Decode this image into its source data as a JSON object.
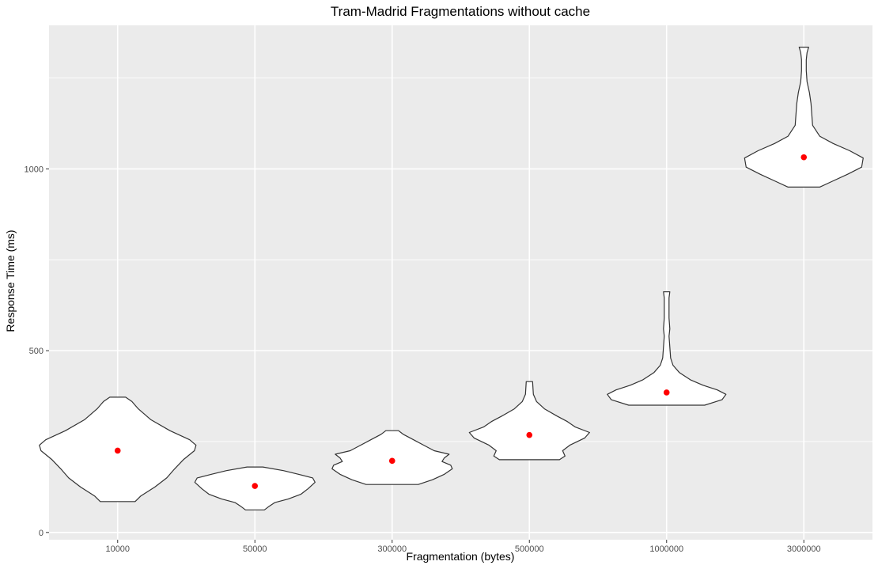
{
  "chart_data": {
    "type": "violin",
    "title": "Tram-Madrid Fragmentations without cache",
    "xlabel": "Fragmentation (bytes)",
    "ylabel": "Response Time (ms)",
    "ylim": [
      -20,
      1395
    ],
    "yticks": [
      0,
      500,
      1000
    ],
    "y_minor_gridlines": [
      250,
      750,
      1250
    ],
    "grid": true,
    "legend": "none",
    "colors": {
      "panel_background": "#ebebeb",
      "gridline": "#ffffff",
      "violin_fill": "#ffffff",
      "violin_outline": "#333333",
      "mean_point": "#ff0000"
    },
    "categories": [
      "10000",
      "50000",
      "300000",
      "500000",
      "1000000",
      "3000000"
    ],
    "series": [
      {
        "category": "10000",
        "mean": 225,
        "min": 85,
        "max": 372,
        "density": [
          [
            85,
            22
          ],
          [
            100,
            29
          ],
          [
            125,
            47
          ],
          [
            150,
            62
          ],
          [
            175,
            72
          ],
          [
            200,
            83
          ],
          [
            225,
            97
          ],
          [
            240,
            99
          ],
          [
            255,
            91
          ],
          [
            280,
            66
          ],
          [
            310,
            42
          ],
          [
            340,
            26
          ],
          [
            360,
            18
          ],
          [
            372,
            10
          ]
        ]
      },
      {
        "category": "50000",
        "mean": 128,
        "min": 62,
        "max": 180,
        "density": [
          [
            62,
            12
          ],
          [
            72,
            18
          ],
          [
            82,
            25
          ],
          [
            92,
            42
          ],
          [
            105,
            58
          ],
          [
            120,
            67
          ],
          [
            138,
            76
          ],
          [
            150,
            73
          ],
          [
            160,
            55
          ],
          [
            170,
            36
          ],
          [
            180,
            10
          ]
        ]
      },
      {
        "category": "300000",
        "mean": 197,
        "min": 132,
        "max": 280,
        "density": [
          [
            132,
            33
          ],
          [
            145,
            51
          ],
          [
            160,
            66
          ],
          [
            175,
            76
          ],
          [
            185,
            74
          ],
          [
            195,
            63
          ],
          [
            205,
            66
          ],
          [
            215,
            72
          ],
          [
            225,
            53
          ],
          [
            240,
            40
          ],
          [
            255,
            27
          ],
          [
            270,
            14
          ],
          [
            280,
            8
          ]
        ]
      },
      {
        "category": "500000",
        "mean": 268,
        "min": 200,
        "max": 415,
        "density": [
          [
            200,
            38
          ],
          [
            210,
            45
          ],
          [
            225,
            42
          ],
          [
            240,
            51
          ],
          [
            260,
            70
          ],
          [
            275,
            76
          ],
          [
            290,
            58
          ],
          [
            305,
            48
          ],
          [
            320,
            35
          ],
          [
            340,
            19
          ],
          [
            360,
            9
          ],
          [
            380,
            5
          ],
          [
            415,
            4
          ]
        ]
      },
      {
        "category": "1000000",
        "mean": 385,
        "min": 350,
        "max": 662,
        "density": [
          [
            350,
            48
          ],
          [
            365,
            70
          ],
          [
            380,
            75
          ],
          [
            392,
            64
          ],
          [
            405,
            46
          ],
          [
            420,
            30
          ],
          [
            440,
            16
          ],
          [
            460,
            8
          ],
          [
            480,
            5
          ],
          [
            510,
            4
          ],
          [
            540,
            3
          ],
          [
            560,
            4
          ],
          [
            590,
            3
          ],
          [
            620,
            3
          ],
          [
            645,
            3
          ],
          [
            662,
            4
          ]
        ]
      },
      {
        "category": "3000000",
        "mean": 1032,
        "min": 950,
        "max": 1335,
        "density": [
          [
            950,
            20
          ],
          [
            965,
            35
          ],
          [
            985,
            55
          ],
          [
            1005,
            73
          ],
          [
            1030,
            75
          ],
          [
            1050,
            58
          ],
          [
            1070,
            37
          ],
          [
            1090,
            20
          ],
          [
            1120,
            11
          ],
          [
            1150,
            10
          ],
          [
            1180,
            9
          ],
          [
            1210,
            7
          ],
          [
            1240,
            4
          ],
          [
            1270,
            3
          ],
          [
            1300,
            3
          ],
          [
            1320,
            4
          ],
          [
            1335,
            6
          ]
        ]
      }
    ]
  }
}
